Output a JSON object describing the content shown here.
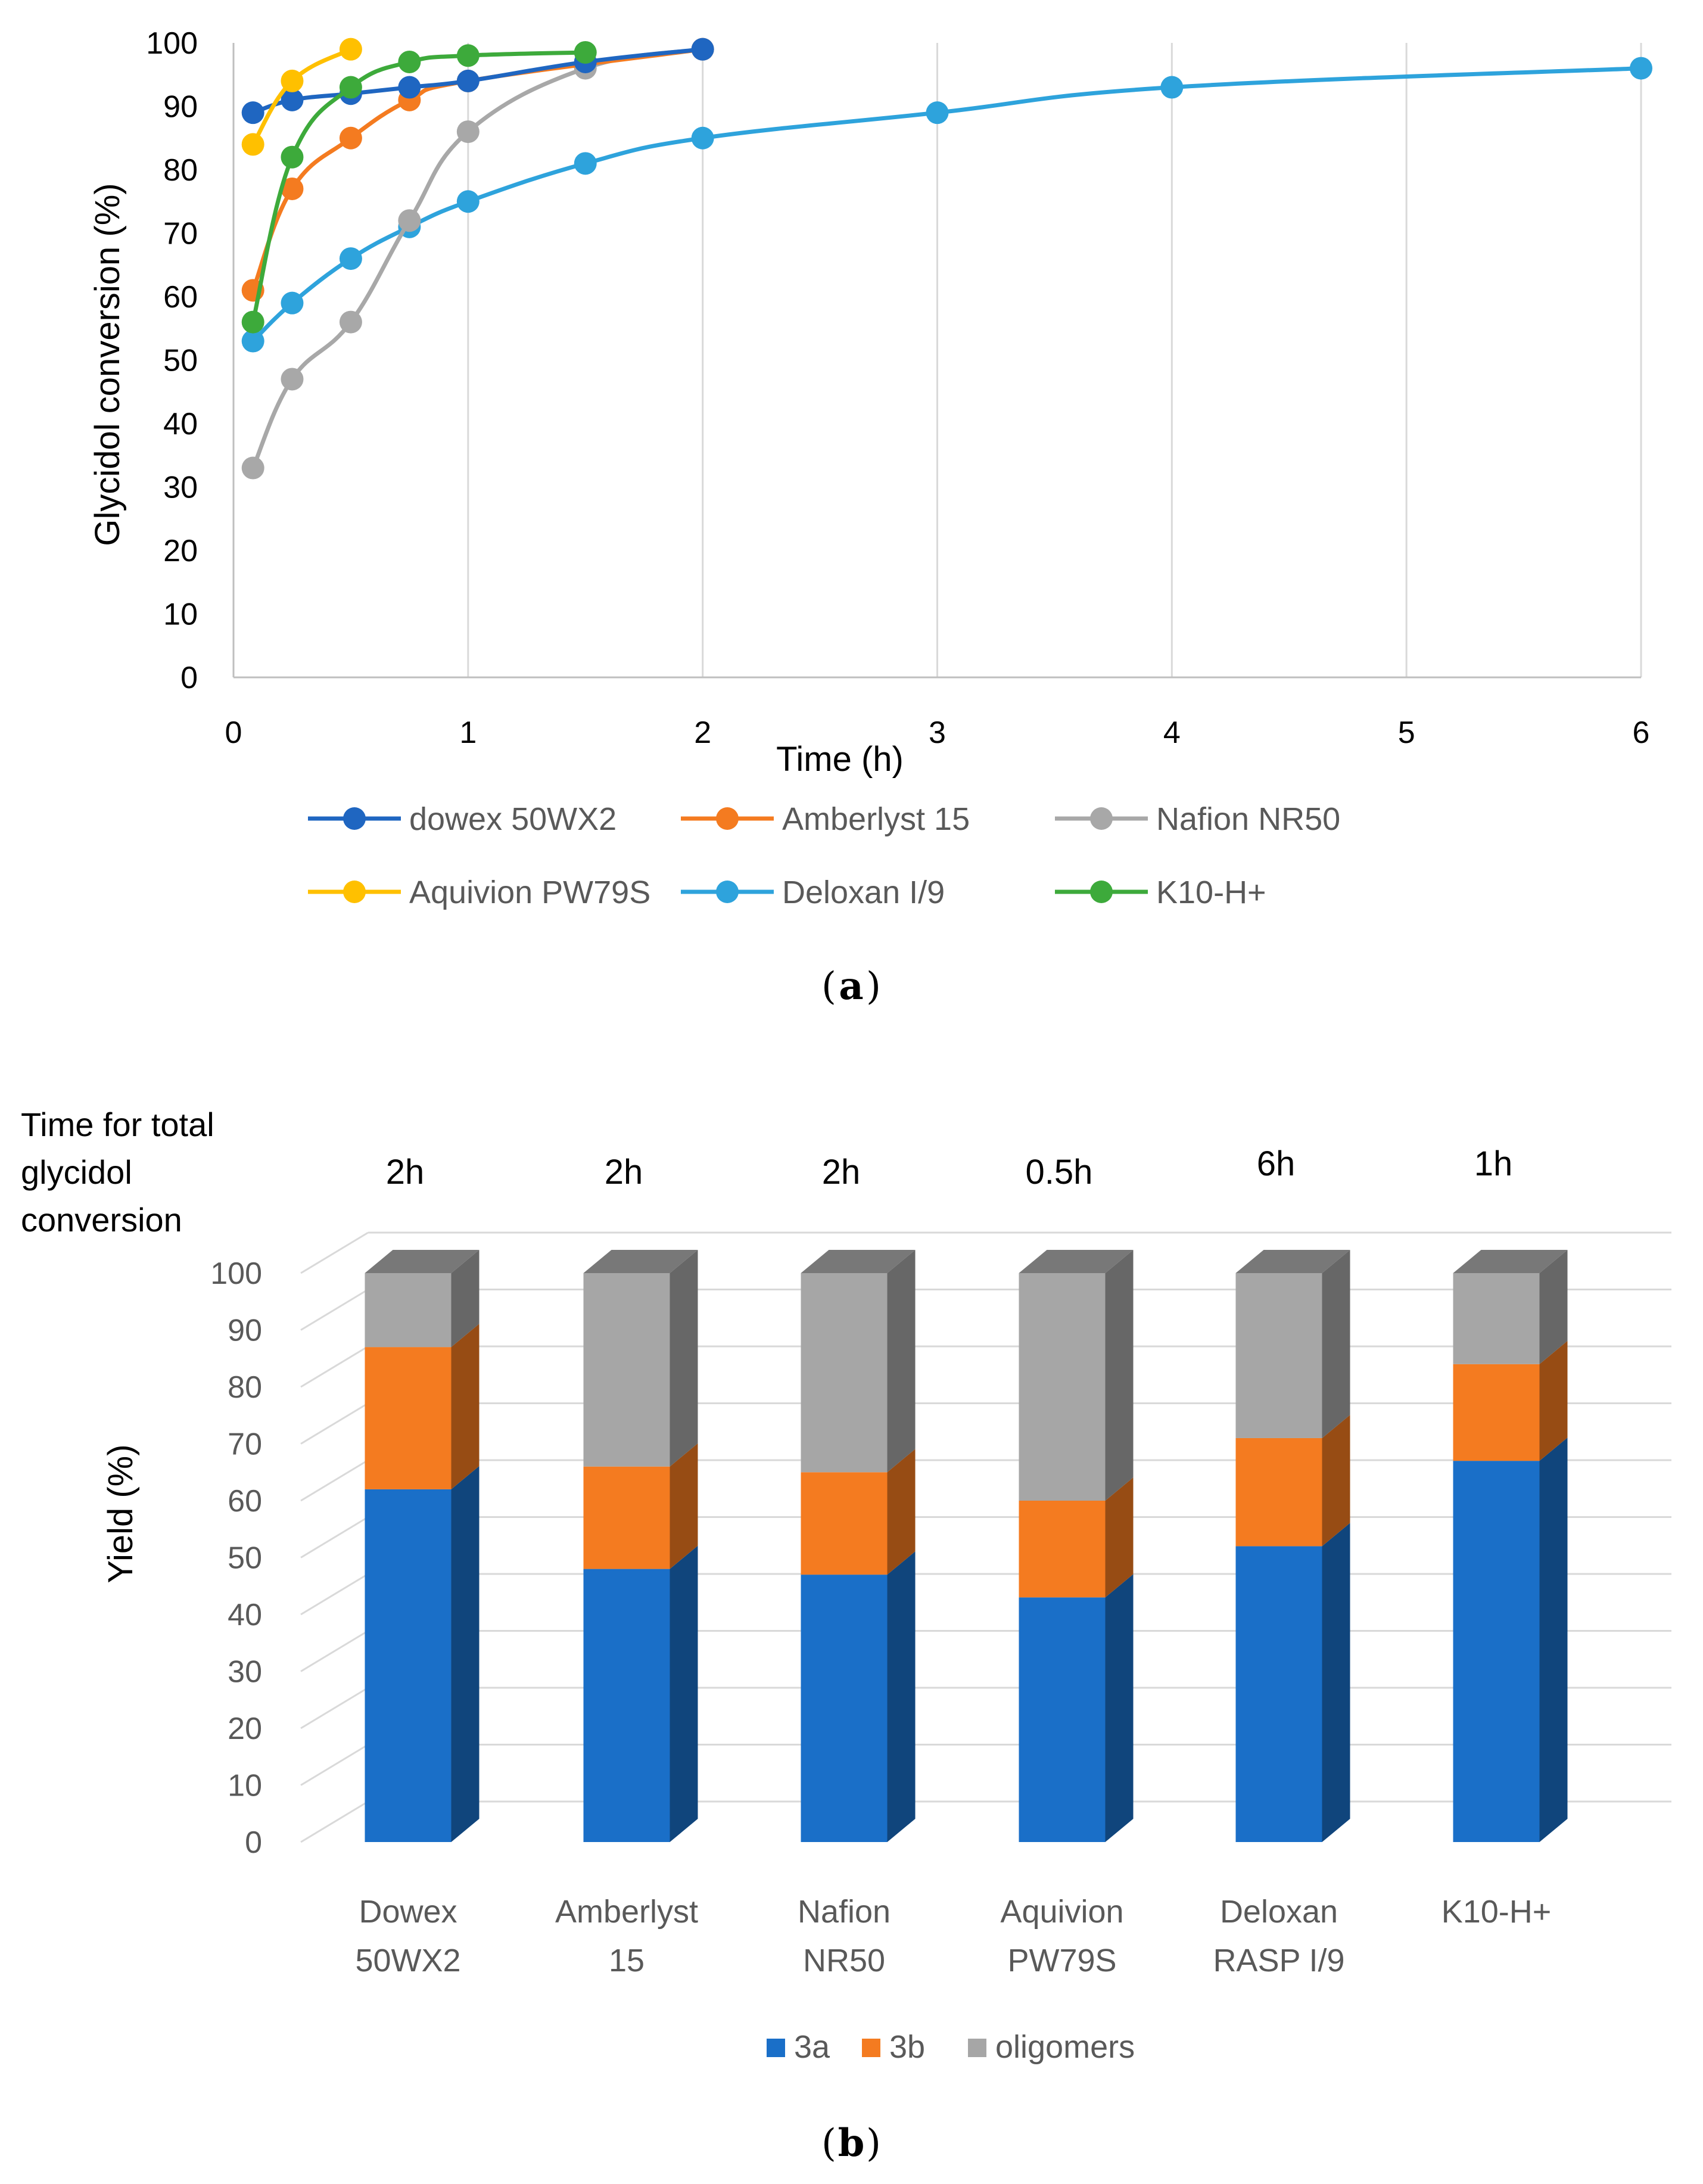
{
  "chart_data": [
    {
      "panel": "a",
      "type": "line",
      "xlabel": "Time (h)",
      "ylabel": "Glycidol conversion (%)",
      "xlim": [
        0,
        6
      ],
      "ylim": [
        0,
        100
      ],
      "x_ticks": [
        "0",
        "1",
        "2",
        "3",
        "4",
        "5",
        "6"
      ],
      "y_ticks": [
        "0",
        "10",
        "20",
        "30",
        "40",
        "50",
        "60",
        "70",
        "80",
        "90",
        "100"
      ],
      "grid": "vertical",
      "legend": "bottom",
      "series": [
        {
          "name": "dowex 50WX2",
          "color": "#1f66c1",
          "x": [
            0.083,
            0.25,
            0.5,
            0.75,
            1,
            1.5,
            2
          ],
          "y": [
            89,
            91,
            92,
            93,
            94,
            97,
            99
          ]
        },
        {
          "name": "Amberlyst 15",
          "color": "#f47b20",
          "x": [
            0.083,
            0.25,
            0.5,
            0.75,
            1,
            2
          ],
          "y": [
            61,
            77,
            85,
            91,
            94,
            99
          ]
        },
        {
          "name": "Nafion NR50",
          "color": "#a8a8a8",
          "x": [
            0.083,
            0.25,
            0.5,
            0.75,
            1,
            1.5,
            2
          ],
          "y": [
            33,
            47,
            56,
            72,
            86,
            96,
            99
          ]
        },
        {
          "name": "Aquivion PW79S",
          "color": "#ffc000",
          "x": [
            0.083,
            0.25,
            0.5
          ],
          "y": [
            84,
            94,
            99
          ]
        },
        {
          "name": "Deloxan I/9",
          "color": "#2ea3dc",
          "x": [
            0.083,
            0.25,
            0.5,
            0.75,
            1,
            1.5,
            2,
            3,
            4,
            6
          ],
          "y": [
            53,
            59,
            66,
            71,
            75,
            81,
            85,
            89,
            93,
            96
          ]
        },
        {
          "name": "K10-H+",
          "color": "#3daa3b",
          "x": [
            0.083,
            0.25,
            0.5,
            0.75,
            1,
            1.5
          ],
          "y": [
            56,
            82,
            93,
            97,
            98,
            98.5
          ]
        }
      ]
    },
    {
      "panel": "b",
      "type": "bar",
      "stacked": true,
      "style": "3d",
      "ylabel": "Yield (%)",
      "ylim": [
        0,
        100
      ],
      "y_ticks": [
        "0",
        "10",
        "20",
        "30",
        "40",
        "50",
        "60",
        "70",
        "80",
        "90",
        "100"
      ],
      "categories": [
        [
          "Dowex",
          "50WX2"
        ],
        [
          "Amberlyst",
          "15"
        ],
        [
          "Nafion",
          "NR50"
        ],
        [
          "Aquivion",
          "PW79S"
        ],
        [
          "Deloxan",
          "RASP I/9"
        ],
        [
          "K10-H+"
        ]
      ],
      "top_header": [
        "Time for total",
        "glycidol",
        "conversion"
      ],
      "top_values": [
        "2h",
        "2h",
        "2h",
        "0.5h",
        "6h",
        "1h"
      ],
      "legend": "bottom",
      "series": [
        {
          "name": "3a",
          "color": "#1a6fc8",
          "values": [
            62,
            48,
            47,
            43,
            52,
            67
          ]
        },
        {
          "name": "3b",
          "color": "#f47b20",
          "values": [
            25,
            18,
            18,
            17,
            19,
            17
          ]
        },
        {
          "name": "oligomers",
          "color": "#a6a6a6",
          "values": [
            13,
            34,
            35,
            40,
            29,
            16
          ]
        }
      ]
    }
  ],
  "captions": {
    "a": "a",
    "b": "b"
  }
}
